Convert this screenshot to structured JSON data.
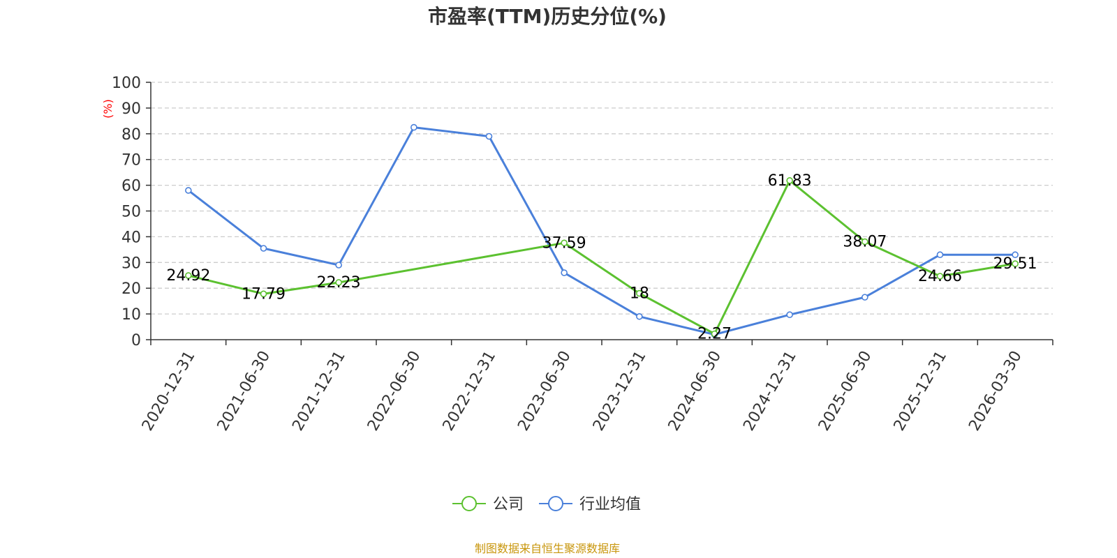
{
  "chart_data": {
    "type": "line",
    "title": "市盈率(TTM)历史分位(%)",
    "ylabel": "(%)",
    "ylim": [
      0,
      100
    ],
    "yticks": [
      0,
      10,
      20,
      30,
      40,
      50,
      60,
      70,
      80,
      90,
      100
    ],
    "grid": true,
    "legend_position": "bottom-center",
    "categories": [
      "2020-12-31",
      "2021-06-30",
      "2021-12-31",
      "2022-06-30",
      "2022-12-31",
      "2023-06-30",
      "2023-12-31",
      "2024-06-30",
      "2024-12-31",
      "2025-06-30",
      "2025-12-31",
      "2026-03-30"
    ],
    "series": [
      {
        "name": "公司",
        "color": "#5cc130",
        "values": [
          24.92,
          17.79,
          22.23,
          null,
          null,
          37.59,
          18,
          2.27,
          61.83,
          38.07,
          24.66,
          29.51
        ],
        "labels": [
          "24.92",
          "17.79",
          "22.23",
          "",
          "",
          "37.59",
          "18",
          "2.27",
          "61.83",
          "38.07",
          "24.66",
          "29.51"
        ]
      },
      {
        "name": "行业均值",
        "color": "#4a80da",
        "values": [
          58,
          35.5,
          29,
          82.5,
          79,
          26,
          9,
          2,
          9.7,
          16.5,
          33,
          33
        ]
      }
    ],
    "source": "制图数据来自恒生聚源数据库",
    "colors": {
      "title": "#333333",
      "axis": "#333333",
      "grid": "#cccccc",
      "unit": "#ff0000",
      "source": "#c8960c"
    }
  }
}
